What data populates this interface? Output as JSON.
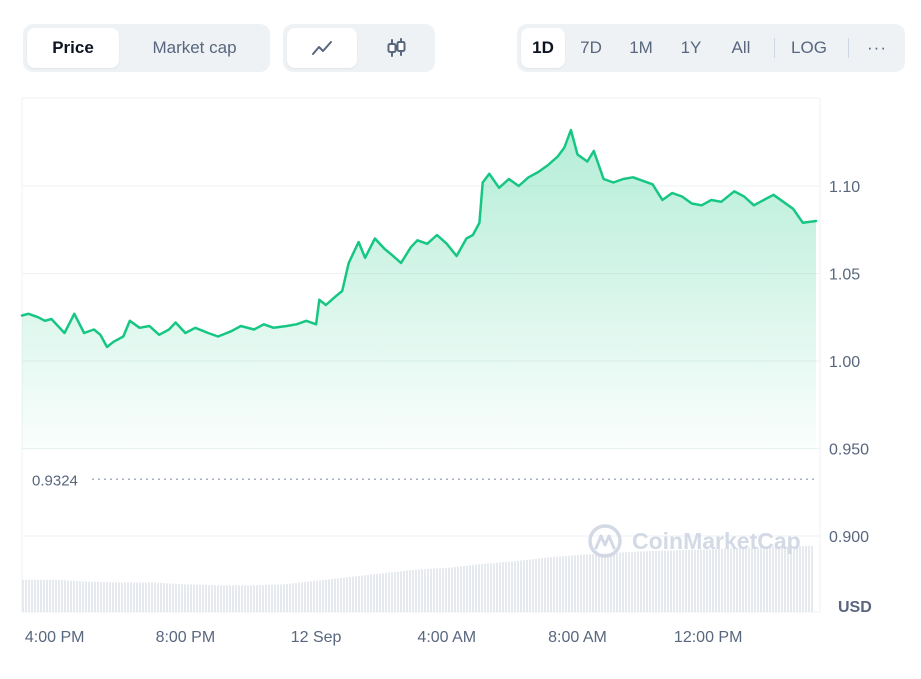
{
  "toolbar": {
    "type_options": [
      {
        "label": "Price",
        "active": true
      },
      {
        "label": "Market cap",
        "active": false
      }
    ],
    "view_icons": [
      "line-chart-icon",
      "candlestick-icon"
    ],
    "ranges": [
      {
        "label": "1D",
        "active": true
      },
      {
        "label": "7D",
        "active": false
      },
      {
        "label": "1M",
        "active": false
      },
      {
        "label": "1Y",
        "active": false
      },
      {
        "label": "All",
        "active": false
      }
    ],
    "log_label": "LOG",
    "more_label": "···"
  },
  "watermark": "CoinMarketCap",
  "colors": {
    "line": "#16c784",
    "grid": "#eff2f5",
    "text": "#58667e",
    "volume": "#e6e9ee"
  },
  "chart_data": {
    "type": "area",
    "ylabel": "USD",
    "yticks": [
      {
        "value": 0.9,
        "label": "0.900"
      },
      {
        "value": 0.95,
        "label": "0.950"
      },
      {
        "value": 1.0,
        "label": "1.00"
      },
      {
        "value": 1.05,
        "label": "1.05"
      },
      {
        "value": 1.1,
        "label": "1.10"
      }
    ],
    "xticks": [
      {
        "hour": 0,
        "label": "4:00 PM"
      },
      {
        "hour": 4,
        "label": "8:00 PM"
      },
      {
        "hour": 8,
        "label": "12 Sep"
      },
      {
        "hour": 12,
        "label": "4:00 AM"
      },
      {
        "hour": 16,
        "label": "8:00 AM"
      },
      {
        "hour": 20,
        "label": "12:00 PM"
      }
    ],
    "ylim": [
      0.85,
      1.15
    ],
    "xlim_hours": [
      -1.0,
      23.3
    ],
    "reference_line": {
      "value": 0.9324,
      "label": "0.9324"
    },
    "series": [
      {
        "values": [
          [
            -1.0,
            1.026
          ],
          [
            -0.8,
            1.027
          ],
          [
            -0.5,
            1.025
          ],
          [
            -0.3,
            1.023
          ],
          [
            -0.1,
            1.024
          ],
          [
            0.3,
            1.016
          ],
          [
            0.6,
            1.027
          ],
          [
            0.9,
            1.016
          ],
          [
            1.2,
            1.018
          ],
          [
            1.4,
            1.015
          ],
          [
            1.6,
            1.008
          ],
          [
            1.8,
            1.011
          ],
          [
            2.1,
            1.014
          ],
          [
            2.3,
            1.023
          ],
          [
            2.6,
            1.019
          ],
          [
            2.9,
            1.02
          ],
          [
            3.2,
            1.015
          ],
          [
            3.5,
            1.018
          ],
          [
            3.7,
            1.022
          ],
          [
            4.0,
            1.016
          ],
          [
            4.3,
            1.019
          ],
          [
            4.7,
            1.016
          ],
          [
            5.0,
            1.014
          ],
          [
            5.4,
            1.017
          ],
          [
            5.7,
            1.02
          ],
          [
            6.1,
            1.018
          ],
          [
            6.4,
            1.021
          ],
          [
            6.7,
            1.019
          ],
          [
            7.1,
            1.02
          ],
          [
            7.4,
            1.021
          ],
          [
            7.7,
            1.023
          ],
          [
            8.0,
            1.021
          ],
          [
            8.1,
            1.035
          ],
          [
            8.3,
            1.032
          ],
          [
            8.6,
            1.037
          ],
          [
            8.8,
            1.04
          ],
          [
            9.0,
            1.056
          ],
          [
            9.3,
            1.068
          ],
          [
            9.5,
            1.059
          ],
          [
            9.8,
            1.07
          ],
          [
            10.1,
            1.064
          ],
          [
            10.3,
            1.061
          ],
          [
            10.6,
            1.056
          ],
          [
            10.9,
            1.065
          ],
          [
            11.1,
            1.069
          ],
          [
            11.4,
            1.067
          ],
          [
            11.7,
            1.072
          ],
          [
            12.0,
            1.067
          ],
          [
            12.3,
            1.06
          ],
          [
            12.6,
            1.07
          ],
          [
            12.8,
            1.072
          ],
          [
            13.0,
            1.079
          ],
          [
            13.1,
            1.102
          ],
          [
            13.3,
            1.107
          ],
          [
            13.6,
            1.099
          ],
          [
            13.9,
            1.104
          ],
          [
            14.2,
            1.1
          ],
          [
            14.5,
            1.105
          ],
          [
            14.8,
            1.108
          ],
          [
            15.1,
            1.112
          ],
          [
            15.4,
            1.117
          ],
          [
            15.6,
            1.122
          ],
          [
            15.8,
            1.132
          ],
          [
            16.0,
            1.118
          ],
          [
            16.3,
            1.114
          ],
          [
            16.5,
            1.12
          ],
          [
            16.8,
            1.104
          ],
          [
            17.1,
            1.102
          ],
          [
            17.4,
            1.104
          ],
          [
            17.7,
            1.105
          ],
          [
            18.0,
            1.103
          ],
          [
            18.3,
            1.101
          ],
          [
            18.6,
            1.092
          ],
          [
            18.9,
            1.096
          ],
          [
            19.2,
            1.094
          ],
          [
            19.5,
            1.09
          ],
          [
            19.8,
            1.089
          ],
          [
            20.1,
            1.092
          ],
          [
            20.4,
            1.091
          ],
          [
            20.8,
            1.097
          ],
          [
            21.1,
            1.094
          ],
          [
            21.4,
            1.089
          ],
          [
            21.7,
            1.092
          ],
          [
            22.0,
            1.095
          ],
          [
            22.3,
            1.091
          ],
          [
            22.6,
            1.087
          ],
          [
            22.9,
            1.079
          ],
          [
            23.3,
            1.08
          ]
        ]
      }
    ],
    "volume": [
      [
        -1.0,
        0.35
      ],
      [
        0.0,
        0.35
      ],
      [
        1.0,
        0.33
      ],
      [
        2.0,
        0.32
      ],
      [
        3.0,
        0.32
      ],
      [
        4.0,
        0.3
      ],
      [
        5.0,
        0.29
      ],
      [
        6.0,
        0.29
      ],
      [
        7.0,
        0.3
      ],
      [
        8.0,
        0.34
      ],
      [
        9.0,
        0.38
      ],
      [
        10.0,
        0.42
      ],
      [
        11.0,
        0.46
      ],
      [
        12.0,
        0.48
      ],
      [
        13.0,
        0.52
      ],
      [
        14.0,
        0.55
      ],
      [
        15.0,
        0.59
      ],
      [
        16.0,
        0.62
      ],
      [
        17.0,
        0.64
      ],
      [
        18.0,
        0.66
      ],
      [
        19.0,
        0.67
      ],
      [
        20.0,
        0.68
      ],
      [
        21.0,
        0.7
      ],
      [
        22.0,
        0.71
      ],
      [
        23.3,
        0.72
      ]
    ]
  }
}
